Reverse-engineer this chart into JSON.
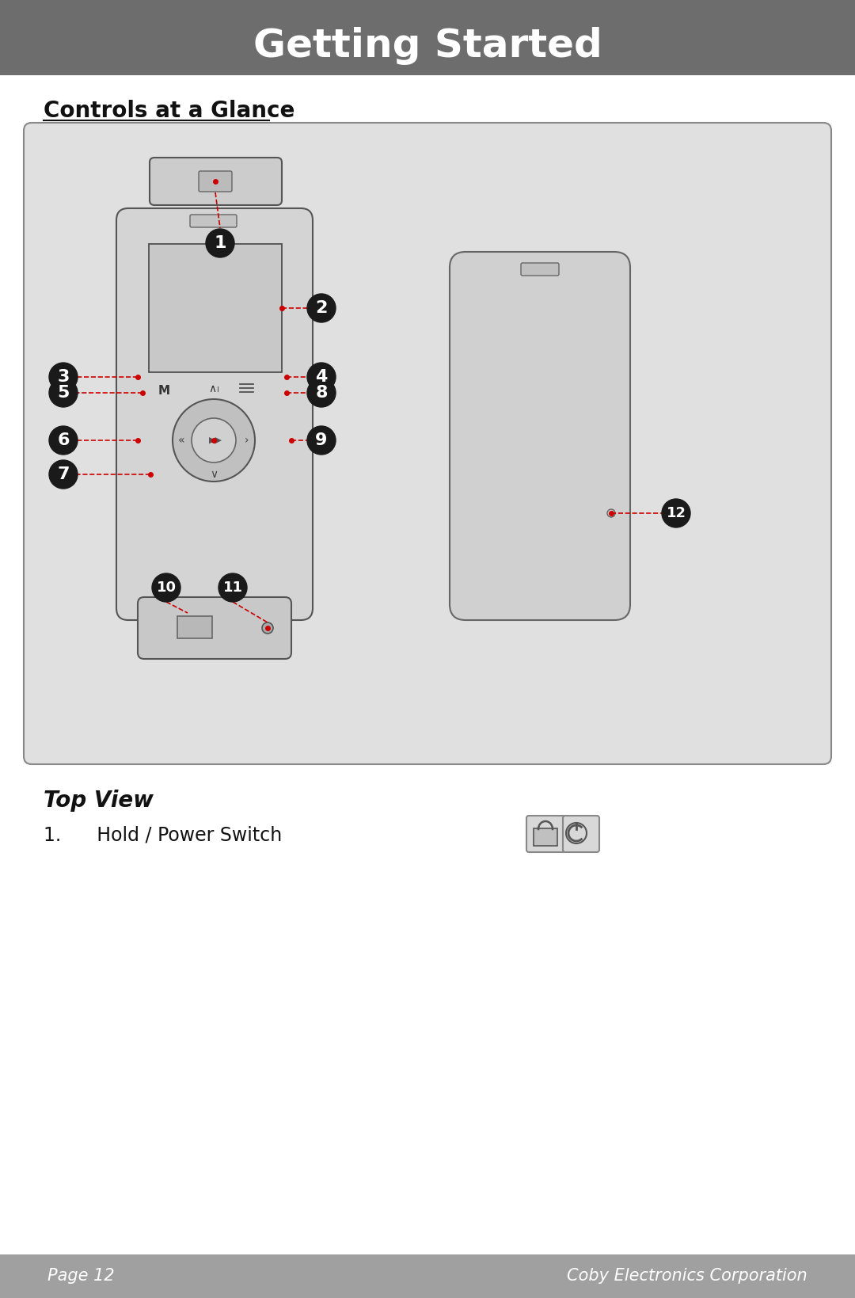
{
  "title": "Getting Started",
  "title_bg": "#6d6d6d",
  "title_color": "#ffffff",
  "page_bg": "#ffffff",
  "section_title": "Controls at a Glance",
  "diagram_bg": "#e0e0e0",
  "footer_bg": "#a0a0a0",
  "footer_left": "Page 12",
  "footer_right": "Coby Electronics Corporation",
  "footer_color": "#ffffff",
  "sub_section": "Top View",
  "item1_label": "1.      Hold / Power Switch",
  "bullet_color": "#1a1a1a",
  "line_color": "#cc0000",
  "dot_color": "#cc0000"
}
